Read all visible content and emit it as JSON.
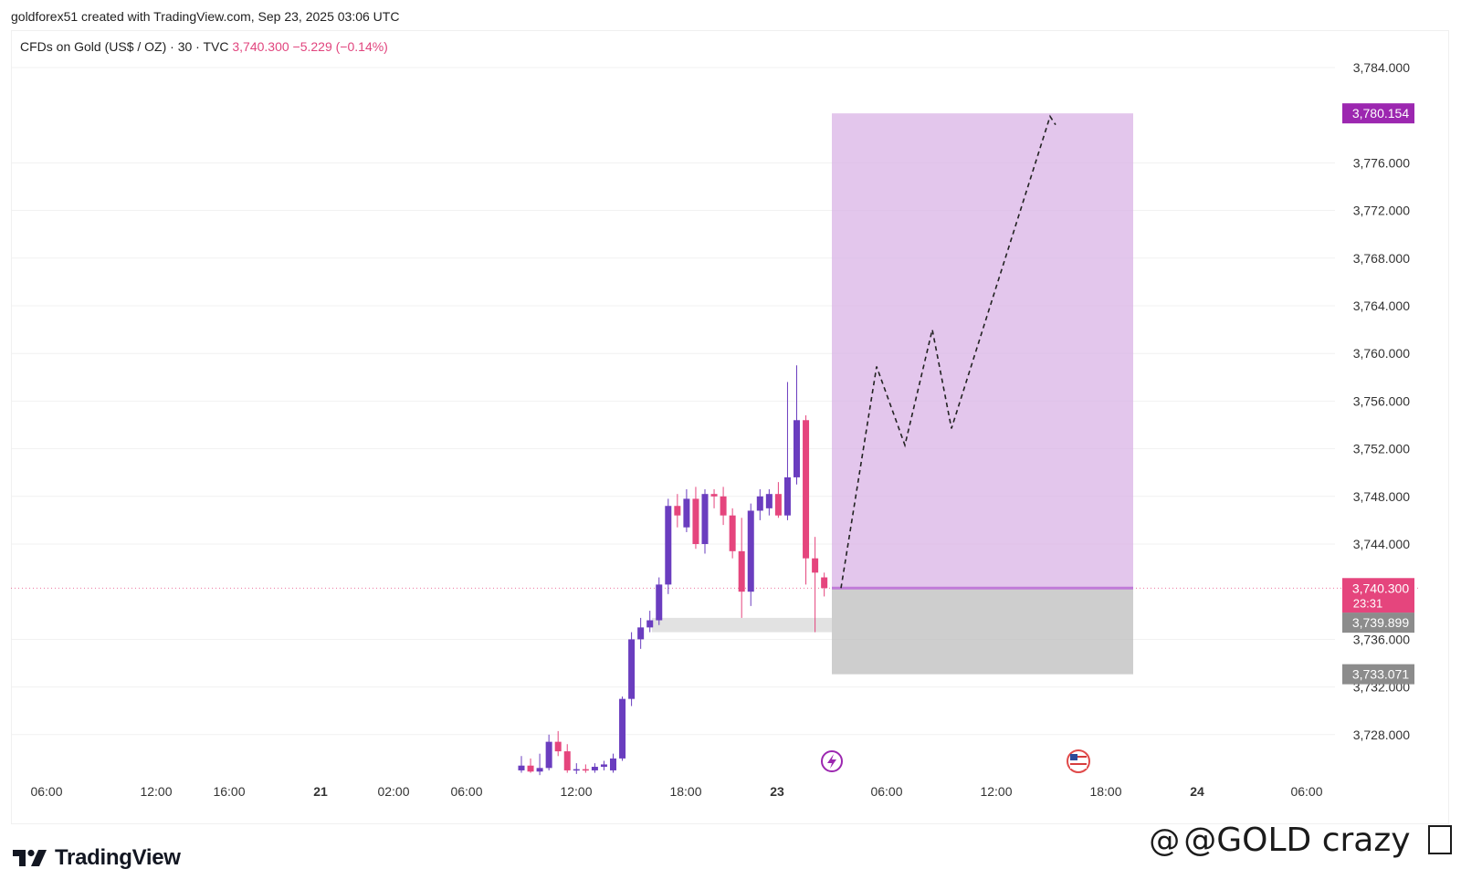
{
  "caption": "goldforex51 created with TradingView.com, Sep 23, 2025 03:06 UTC",
  "legend": {
    "symbol": "CFDs on Gold (US$ / OZ) · 30 · TVC",
    "price": "3,740.300",
    "change": "−5.229 (−0.14%)"
  },
  "brand": {
    "name": "TradingView"
  },
  "watermark": {
    "text": "@GOLD crazy",
    "icon": "threads-icon",
    "tail_icon": "box-icon"
  },
  "colors": {
    "bull": "#6a3dbf",
    "bear": "#e5457d",
    "target_zone": "#d9b3e6",
    "stop_zone": "#bdbdbd",
    "target_badge": "#9c27b0",
    "last_price_badge": "#e5457d",
    "stop_badge": "#8c8c8c"
  },
  "chart_data": {
    "type": "candlestick",
    "symbol": "CFDs on Gold (US$ / OZ)",
    "interval": "30",
    "source": "TVC",
    "ylim": [
      3724,
      3788
    ],
    "y_ticks": [
      "3,784.000",
      "3,776.000",
      "3,772.000",
      "3,768.000",
      "3,764.000",
      "3,760.000",
      "3,756.000",
      "3,752.000",
      "3,748.000",
      "3,744.000",
      "3,736.000",
      "3,732.000",
      "3,728.000"
    ],
    "y_tick_values": [
      3784,
      3776,
      3772,
      3768,
      3764,
      3760,
      3756,
      3752,
      3748,
      3744,
      3736,
      3732,
      3728
    ],
    "x_ticks": [
      "06:00",
      "12:00",
      "16:00",
      "21",
      "02:00",
      "06:00",
      "12:00",
      "18:00",
      "23",
      "06:00",
      "12:00",
      "18:00",
      "24",
      "06:00"
    ],
    "x_tick_bold": [
      false,
      false,
      false,
      true,
      false,
      false,
      false,
      false,
      true,
      false,
      false,
      false,
      true,
      false
    ],
    "candles": [
      {
        "o": 3725.0,
        "h": 3726.2,
        "l": 3724.8,
        "c": 3725.4
      },
      {
        "o": 3725.4,
        "h": 3726.0,
        "l": 3724.8,
        "c": 3724.9
      },
      {
        "o": 3724.9,
        "h": 3726.4,
        "l": 3724.6,
        "c": 3725.2
      },
      {
        "o": 3725.2,
        "h": 3728.0,
        "l": 3725.0,
        "c": 3727.4
      },
      {
        "o": 3727.4,
        "h": 3728.3,
        "l": 3726.2,
        "c": 3726.6
      },
      {
        "o": 3726.6,
        "h": 3727.2,
        "l": 3724.8,
        "c": 3725.0
      },
      {
        "o": 3725.0,
        "h": 3725.6,
        "l": 3724.7,
        "c": 3725.1
      },
      {
        "o": 3725.1,
        "h": 3725.5,
        "l": 3724.8,
        "c": 3725.0
      },
      {
        "o": 3725.0,
        "h": 3725.6,
        "l": 3724.8,
        "c": 3725.3
      },
      {
        "o": 3725.3,
        "h": 3725.8,
        "l": 3725.0,
        "c": 3725.5
      },
      {
        "o": 3725.0,
        "h": 3726.4,
        "l": 3724.8,
        "c": 3726.0
      },
      {
        "o": 3726.0,
        "h": 3731.2,
        "l": 3725.8,
        "c": 3731.0
      },
      {
        "o": 3731.0,
        "h": 3736.6,
        "l": 3730.4,
        "c": 3736.0
      },
      {
        "o": 3736.0,
        "h": 3737.8,
        "l": 3735.2,
        "c": 3737.0
      },
      {
        "o": 3737.0,
        "h": 3738.4,
        "l": 3736.6,
        "c": 3737.6
      },
      {
        "o": 3737.6,
        "h": 3741.2,
        "l": 3737.2,
        "c": 3740.6
      },
      {
        "o": 3740.6,
        "h": 3747.8,
        "l": 3739.8,
        "c": 3747.2
      },
      {
        "o": 3747.2,
        "h": 3748.2,
        "l": 3745.4,
        "c": 3746.4
      },
      {
        "o": 3745.4,
        "h": 3748.6,
        "l": 3745.0,
        "c": 3747.8
      },
      {
        "o": 3747.8,
        "h": 3748.8,
        "l": 3743.6,
        "c": 3744.0
      },
      {
        "o": 3744.0,
        "h": 3748.6,
        "l": 3743.2,
        "c": 3748.2
      },
      {
        "o": 3748.2,
        "h": 3748.6,
        "l": 3747.0,
        "c": 3748.0
      },
      {
        "o": 3748.0,
        "h": 3748.8,
        "l": 3745.6,
        "c": 3746.4
      },
      {
        "o": 3746.4,
        "h": 3747.0,
        "l": 3742.8,
        "c": 3743.4
      },
      {
        "o": 3743.4,
        "h": 3746.2,
        "l": 3737.8,
        "c": 3740.0
      },
      {
        "o": 3740.0,
        "h": 3747.4,
        "l": 3738.8,
        "c": 3746.8
      },
      {
        "o": 3746.8,
        "h": 3748.6,
        "l": 3746.0,
        "c": 3748.0
      },
      {
        "o": 3747.0,
        "h": 3748.6,
        "l": 3746.4,
        "c": 3748.2
      },
      {
        "o": 3748.2,
        "h": 3749.2,
        "l": 3746.2,
        "c": 3746.4
      },
      {
        "o": 3746.4,
        "h": 3757.6,
        "l": 3746.0,
        "c": 3749.6
      },
      {
        "o": 3749.6,
        "h": 3759.0,
        "l": 3749.0,
        "c": 3754.4
      },
      {
        "o": 3754.4,
        "h": 3754.8,
        "l": 3740.6,
        "c": 3742.8
      },
      {
        "o": 3742.8,
        "h": 3744.6,
        "l": 3736.6,
        "c": 3741.6
      },
      {
        "o": 3741.2,
        "h": 3741.6,
        "l": 3739.6,
        "c": 3740.3
      }
    ],
    "position": {
      "type": "long",
      "entry": 3740.3,
      "target": 3780.154,
      "stop": 3733.071
    },
    "price_labels": {
      "target": "3,780.154",
      "last_price": "3,740.300",
      "countdown": "23:31",
      "mid": "3,739.899",
      "stop": "3,733.071"
    },
    "support_zone": [
      3736.6,
      3737.8
    ],
    "projection_path": [
      [
        3740.3,
        0
      ],
      [
        3758.9,
        1
      ],
      [
        3752.3,
        2
      ],
      [
        3762.0,
        3
      ],
      [
        3753.7,
        4
      ],
      [
        3779.9,
        5
      ],
      [
        3779.2,
        6
      ]
    ],
    "event_markers": [
      "lightning-event-icon",
      "us-flag-event-icon"
    ]
  }
}
